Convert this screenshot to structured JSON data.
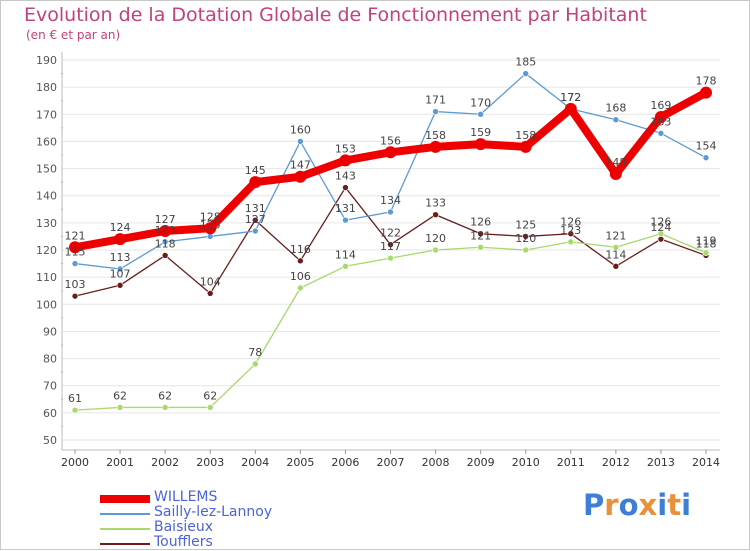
{
  "title": "Evolution de la Dotation Globale de Fonctionnement par Habitant",
  "subtitle": "(en € et par an)",
  "logo": {
    "text": "Proxiti",
    "letters": [
      "P",
      "r",
      "o",
      "x",
      "i",
      "t",
      "i"
    ],
    "colors": [
      "#3d7fd6",
      "#e8903a",
      "#3d7fd6",
      "#e8903a",
      "#3d7fd6",
      "#e8903a",
      "#3d7fd6"
    ]
  },
  "chart_data": {
    "type": "line",
    "categories": [
      "2000",
      "2001",
      "2002",
      "2003",
      "2004",
      "2005",
      "2006",
      "2007",
      "2008",
      "2009",
      "2010",
      "2011",
      "2012",
      "2013",
      "2014"
    ],
    "ylim": [
      50,
      190
    ],
    "yticks": [
      50,
      60,
      70,
      80,
      90,
      100,
      110,
      120,
      130,
      140,
      150,
      160,
      170,
      180,
      190
    ],
    "grid": "horizontal",
    "legend_position": "bottom-left",
    "series": [
      {
        "name": "WILLEMS",
        "color": "#ee0000",
        "values": [
          121,
          124,
          127,
          128,
          145,
          147,
          153,
          156,
          158,
          159,
          158,
          172,
          148,
          169,
          178
        ]
      },
      {
        "name": "Sailly-lez-Lannoy",
        "color": "#5b9bd5",
        "values": [
          115,
          113,
          123,
          125,
          127,
          160,
          131,
          134,
          171,
          170,
          185,
          172,
          168,
          163,
          154
        ]
      },
      {
        "name": "Baisieux",
        "color": "#a7d96b",
        "values": [
          61,
          62,
          62,
          62,
          78,
          106,
          114,
          117,
          120,
          121,
          120,
          123,
          121,
          126,
          119
        ]
      },
      {
        "name": "Toufflers",
        "color": "#6b1d1d",
        "values": [
          103,
          107,
          118,
          104,
          131,
          116,
          143,
          122,
          133,
          126,
          125,
          126,
          114,
          124,
          118
        ]
      }
    ],
    "data_labels": {
      "WILLEMS": [
        "121",
        "124",
        "127",
        "128",
        "145",
        "147",
        "153",
        "156",
        "158",
        "159",
        "158",
        "172",
        "148",
        "169",
        "178"
      ],
      "Sailly-lez-Lannoy": [
        "115",
        "113",
        "123",
        "125",
        "127",
        "160",
        "131",
        "134",
        "171",
        "170",
        "185",
        "172",
        "168",
        "163",
        "154"
      ],
      "Baisieux": [
        "61",
        "62",
        "62",
        "62",
        "78",
        "106",
        "114",
        "117",
        "120",
        "121",
        "120",
        "123",
        "121",
        "126",
        "119"
      ],
      "Toufflers": [
        "103",
        "107",
        "118",
        "104",
        "131",
        "116",
        "143",
        "122",
        "133",
        "126",
        "125",
        "126",
        "114",
        "124",
        "118"
      ]
    }
  }
}
